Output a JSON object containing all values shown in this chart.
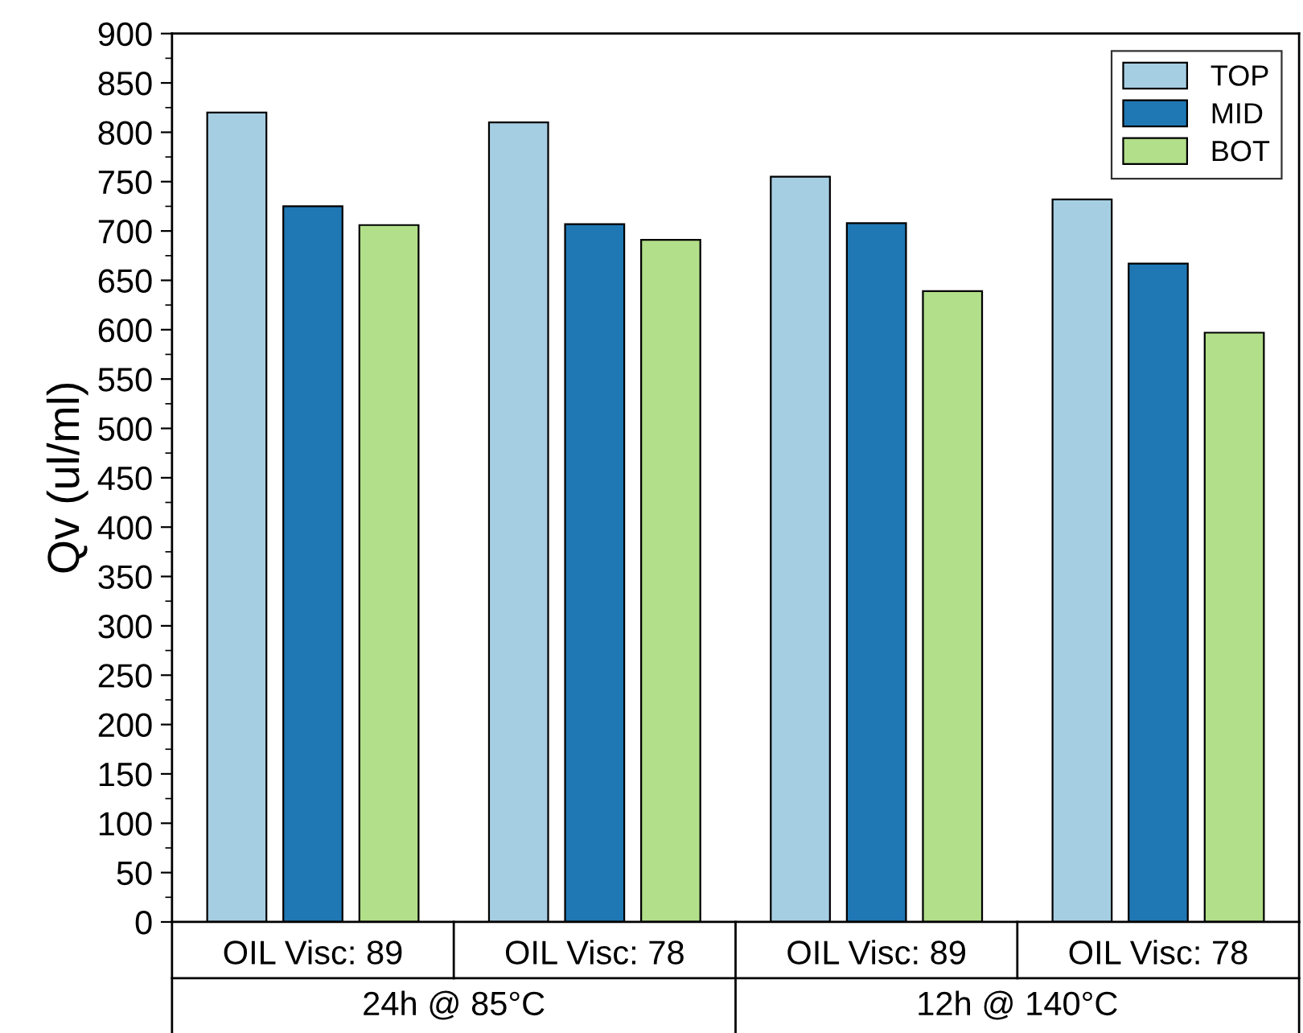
{
  "chart_data": {
    "type": "bar",
    "ylabel": "Qv (ul/ml)",
    "categories": [
      "OIL Visc: 89",
      "OIL Visc: 78",
      "OIL Visc: 89",
      "OIL Visc: 78"
    ],
    "series": [
      {
        "name": "TOP",
        "color": "#a6cee3",
        "values": [
          820,
          810,
          755,
          732
        ]
      },
      {
        "name": "MID",
        "color": "#1f78b4",
        "values": [
          725,
          707,
          708,
          667
        ]
      },
      {
        "name": "BOT",
        "color": "#b2df8a",
        "values": [
          706,
          691,
          639,
          597
        ]
      }
    ],
    "ylim": [
      0,
      900
    ],
    "yticks": [
      0,
      50,
      100,
      150,
      200,
      250,
      300,
      350,
      400,
      450,
      500,
      550,
      600,
      650,
      700,
      750,
      800,
      850,
      900
    ],
    "grid": false,
    "legend": "top right",
    "annotations": [
      "24h @ 85°C",
      "12h @ 140°C"
    ]
  }
}
